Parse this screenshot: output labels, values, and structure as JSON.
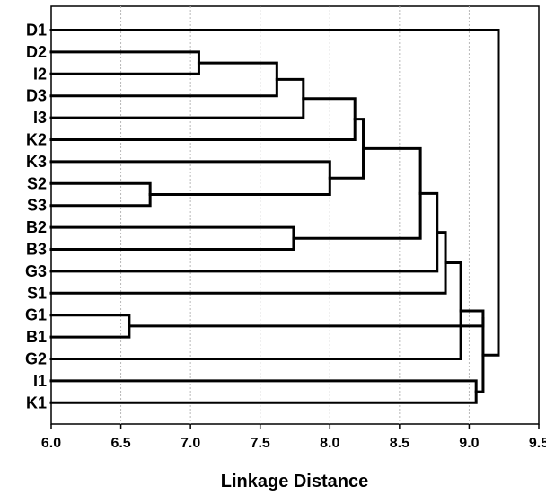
{
  "chart_data": {
    "type": "dendrogram",
    "xlabel": "Linkage Distance",
    "xlim": [
      6.0,
      9.5
    ],
    "xticks": [
      "6.0",
      "6.5",
      "7.0",
      "7.5",
      "8.0",
      "8.5",
      "9.0",
      "9.5"
    ],
    "grid": true,
    "leaves": [
      "D1",
      "D2",
      "I2",
      "D3",
      "I3",
      "K2",
      "K3",
      "S2",
      "S3",
      "B2",
      "B3",
      "G3",
      "S1",
      "G1",
      "B1",
      "G2",
      "I1",
      "K1"
    ],
    "merges": [
      {
        "a": "G1",
        "b": "B1",
        "distance": 6.56
      },
      {
        "a": "S2",
        "b": "S3",
        "distance": 6.71
      },
      {
        "a": "D2",
        "b": "I2",
        "distance": 7.06
      },
      {
        "a": "D2,I2",
        "b": "D3",
        "distance": 7.62
      },
      {
        "a": "B2",
        "b": "B3",
        "distance": 7.74
      },
      {
        "a": "D2,I2,D3",
        "b": "I3",
        "distance": 7.81
      },
      {
        "a": "D2,I2,D3,I3",
        "b": "K2",
        "distance": 8.18
      },
      {
        "a": "K3",
        "b": "S2,S3",
        "distance": 8.0
      },
      {
        "a": "D2,I2,D3,I3,K2",
        "b": "K3,S2,S3",
        "distance": 8.24
      },
      {
        "a": "D2,I2,D3,I3,K2,K3,S2,S3",
        "b": "B2,B3",
        "distance": 8.65
      },
      {
        "a": "D2,I2,D3,I3,K2,K3,S2,S3,B2,B3",
        "b": "G3",
        "distance": 8.77
      },
      {
        "a": "D2,I2,D3,I3,K2,K3,S2,S3,B2,B3,G3",
        "b": "S1",
        "distance": 8.83
      },
      {
        "a": "D2,I2,D3,I3,K2,K3,S2,S3,B2,B3,G3,S1",
        "b": "G2",
        "distance": 8.94
      },
      {
        "a": "I1",
        "b": "K1",
        "distance": 9.05
      },
      {
        "a": "G1,B1",
        "b": "D2,I2,D3,I3,K2,K3,S2,S3,B2,B3,G3,S1,G2",
        "distance": 9.1
      },
      {
        "a": "G1,B1,D2,I2,D3,I3,K2,K3,S2,S3,B2,B3,G3,S1,G2",
        "b": "I1,K1",
        "distance": 9.1
      },
      {
        "a": "D1",
        "b": "all others",
        "distance": 9.21
      }
    ]
  }
}
